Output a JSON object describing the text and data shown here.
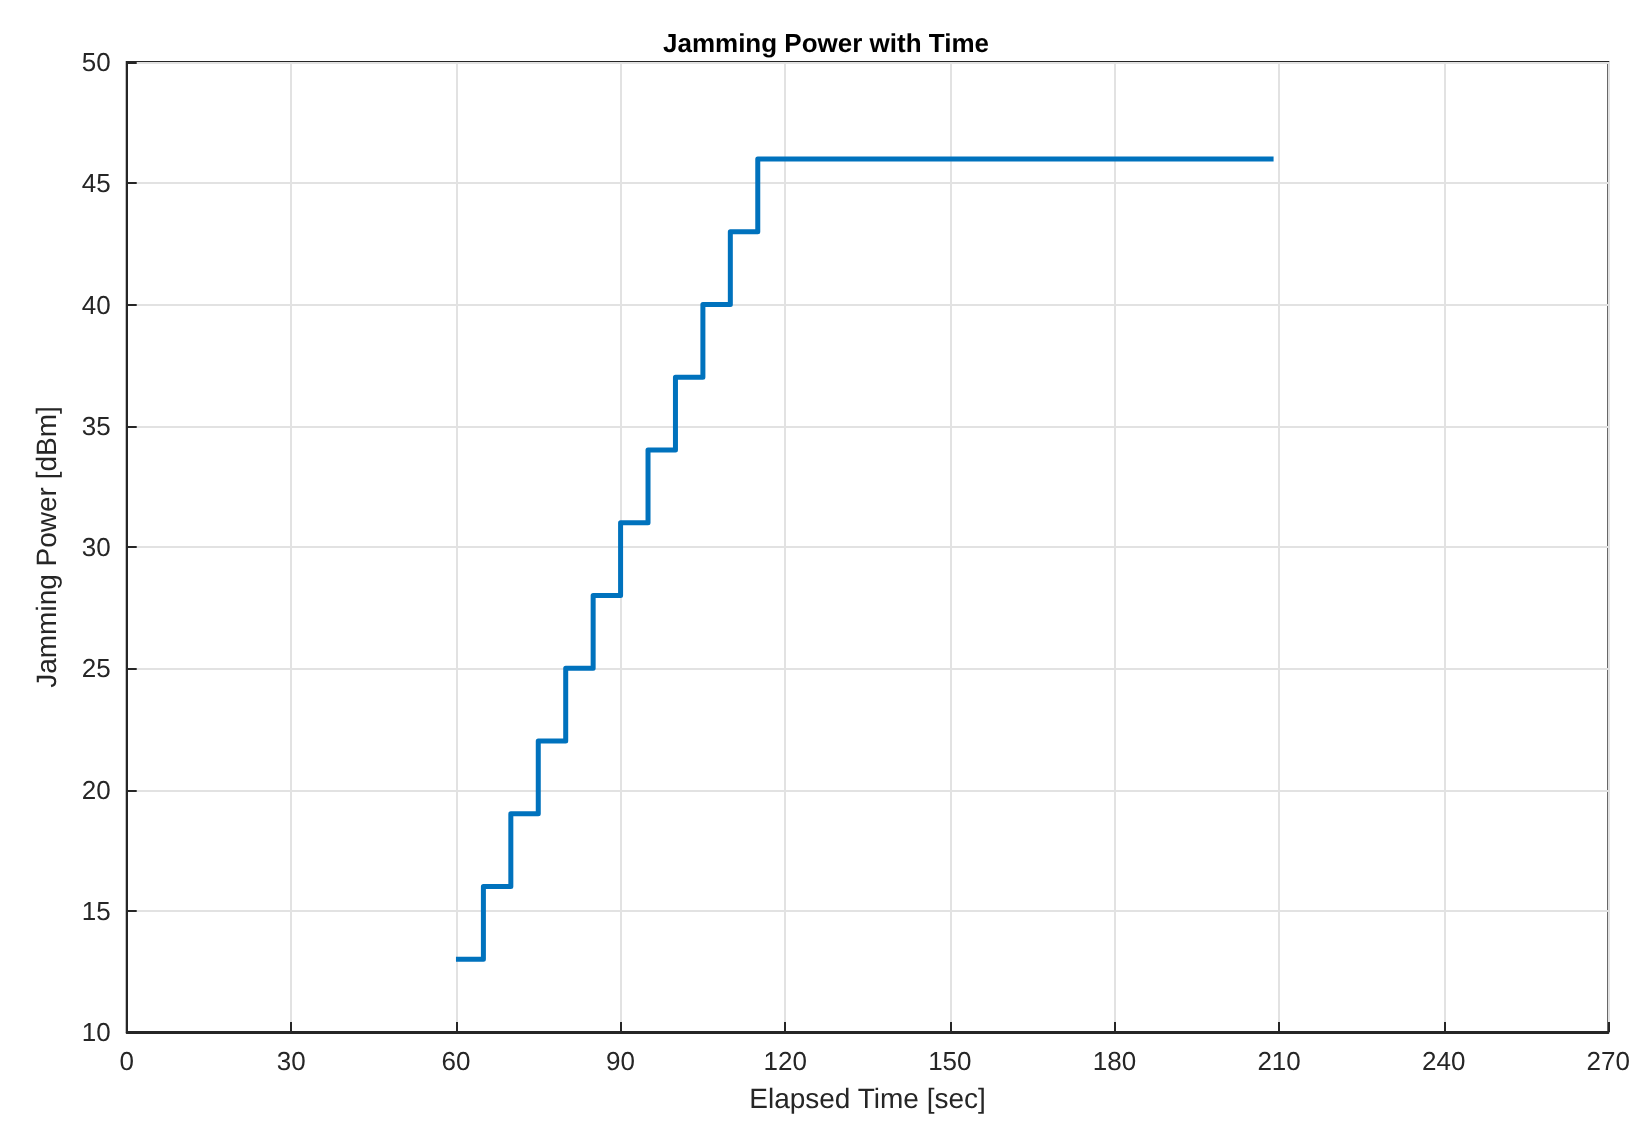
{
  "chart_data": {
    "type": "step",
    "title": "Jamming Power with Time",
    "xlabel": "Elapsed Time [sec]",
    "ylabel": "Jamming Power [dBm]",
    "x": [
      60,
      65,
      70,
      75,
      80,
      85,
      90,
      95,
      100,
      105,
      110,
      115,
      209
    ],
    "series": [
      {
        "color": "#0072bd",
        "values": [
          13,
          16,
          19,
          22,
          25,
          28,
          31,
          34,
          37,
          40,
          43,
          46,
          46
        ]
      }
    ],
    "xlim": [
      0,
      270
    ],
    "xticks": [
      0,
      30,
      60,
      90,
      120,
      150,
      180,
      210,
      240,
      270
    ],
    "ylim": [
      10,
      50
    ],
    "yticks": [
      10,
      15,
      20,
      25,
      30,
      35,
      40,
      45,
      50
    ],
    "grid": true,
    "marker": "none",
    "line_style": "solid"
  }
}
